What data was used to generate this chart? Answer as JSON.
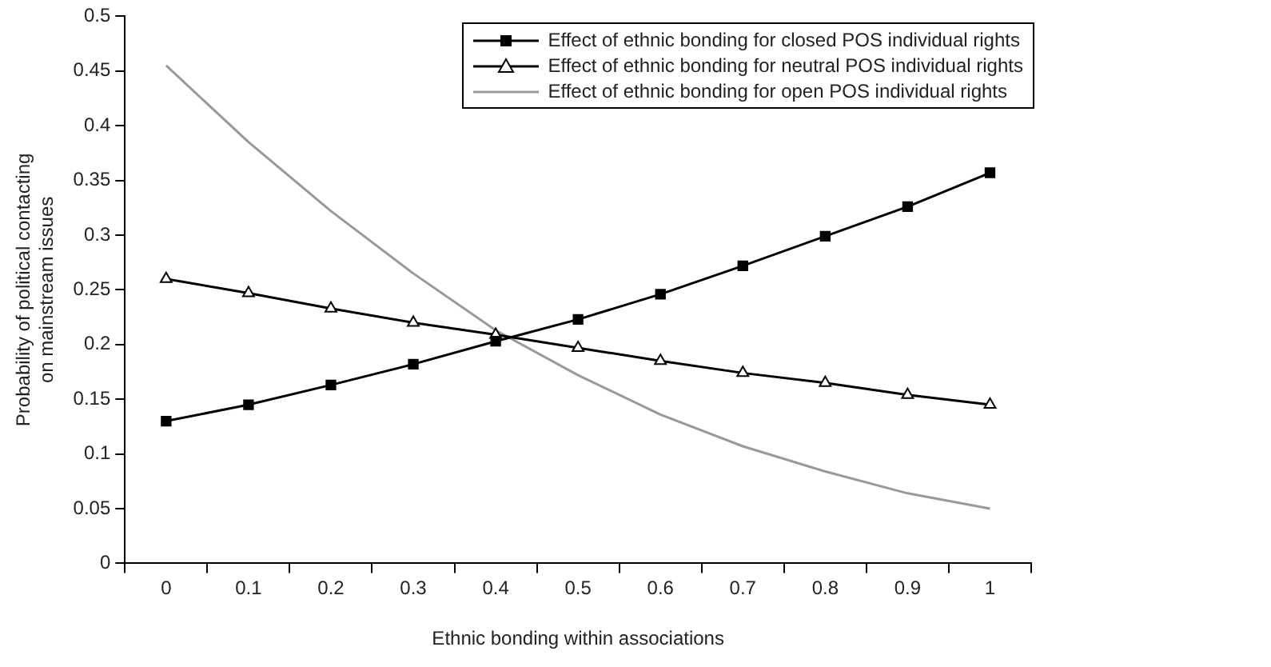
{
  "chart_data": {
    "type": "line",
    "xlabel": "Ethnic bonding within associations",
    "ylabel": "Probability of political contacting on mainstream issues",
    "categories": [
      "0",
      "0.1",
      "0.2",
      "0.3",
      "0.4",
      "0.5",
      "0.6",
      "0.7",
      "0.8",
      "0.9",
      "1"
    ],
    "series": [
      {
        "name": "Effect of ethnic bonding for closed POS individual rights",
        "color": "#000000",
        "marker": "square",
        "values": [
          0.13,
          0.145,
          0.163,
          0.182,
          0.203,
          0.223,
          0.246,
          0.272,
          0.299,
          0.326,
          0.357
        ]
      },
      {
        "name": "Effect of ethnic bonding for neutral POS individual rights",
        "color": "#000000",
        "marker": "triangle",
        "values": [
          0.26,
          0.247,
          0.233,
          0.22,
          0.209,
          0.197,
          0.185,
          0.174,
          0.165,
          0.154,
          0.145
        ]
      },
      {
        "name": "Effect of ethnic bonding for open POS individual rights",
        "color": "#999999",
        "marker": "none",
        "values": [
          0.455,
          0.385,
          0.322,
          0.265,
          0.213,
          0.172,
          0.136,
          0.107,
          0.084,
          0.064,
          0.05
        ]
      }
    ],
    "ylim": [
      0,
      0.5
    ],
    "yticks": [
      0,
      0.05,
      0.1,
      0.15,
      0.2,
      0.25,
      0.3,
      0.35,
      0.4,
      0.45,
      0.5
    ],
    "grid": false,
    "legend": "top right"
  }
}
